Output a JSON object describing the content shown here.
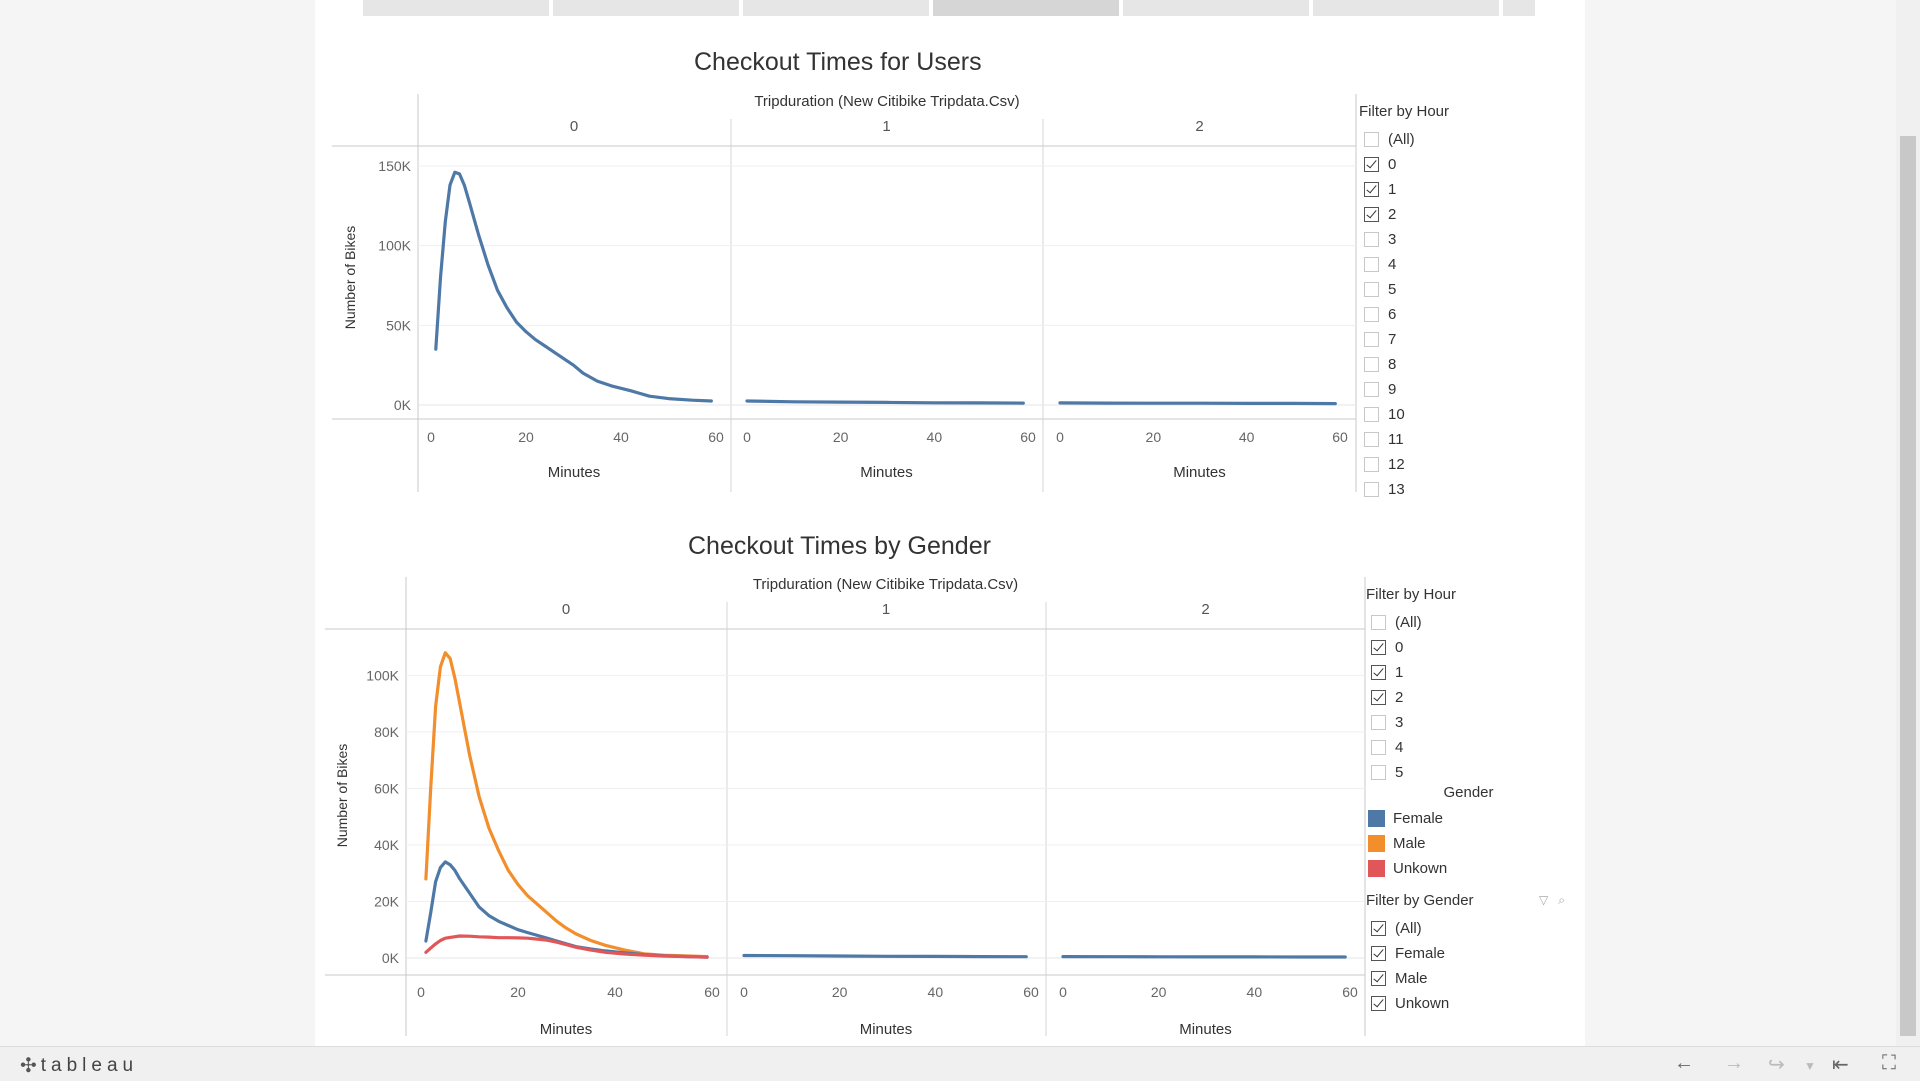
{
  "colors": {
    "female": "#4e79a7",
    "male": "#f28e2b",
    "unknown": "#e15759"
  },
  "chart_data": [
    {
      "type": "line",
      "title": "Checkout Times for Users",
      "column_header": "Tripduration (New Citibike Tripdata.Csv)",
      "xlabel": "Minutes",
      "ylabel": "Number of Bikes",
      "ylim": [
        0,
        160000
      ],
      "xlim": [
        0,
        60
      ],
      "y_ticks": [
        0,
        50000,
        100000,
        150000
      ],
      "y_tick_labels": [
        "0K",
        "50K",
        "100K",
        "150K"
      ],
      "x_ticks": [
        0,
        20,
        40,
        60
      ],
      "grid": true,
      "panels": [
        {
          "label": "0",
          "series": [
            {
              "color": "#4e79a7",
              "x": [
                1,
                2,
                3,
                4,
                5,
                6,
                7,
                8,
                10,
                12,
                14,
                16,
                18,
                20,
                22,
                24,
                26,
                28,
                30,
                32,
                35,
                38,
                42,
                46,
                50,
                55,
                59
              ],
              "y": [
                35000,
                80000,
                115000,
                138000,
                146000,
                145000,
                138000,
                128000,
                107000,
                88000,
                72000,
                61000,
                52000,
                46000,
                41000,
                37000,
                33000,
                29000,
                25000,
                20000,
                15000,
                12000,
                9000,
                5500,
                4000,
                3000,
                2500
              ]
            }
          ]
        },
        {
          "label": "1",
          "series": [
            {
              "color": "#4e79a7",
              "x": [
                0,
                10,
                20,
                30,
                40,
                50,
                59
              ],
              "y": [
                2500,
                2000,
                1800,
                1600,
                1400,
                1300,
                1200
              ]
            }
          ]
        },
        {
          "label": "2",
          "series": [
            {
              "color": "#4e79a7",
              "x": [
                0,
                10,
                20,
                30,
                40,
                50,
                59
              ],
              "y": [
                1300,
                1200,
                1100,
                1100,
                1000,
                1000,
                900
              ]
            }
          ]
        }
      ]
    },
    {
      "type": "line",
      "title": "Checkout Times by Gender",
      "column_header": "Tripduration (New Citibike Tripdata.Csv)",
      "xlabel": "Minutes",
      "ylabel": "Number of Bikes",
      "ylim": [
        0,
        115000
      ],
      "xlim": [
        0,
        60
      ],
      "y_ticks": [
        0,
        20000,
        40000,
        60000,
        80000,
        100000
      ],
      "y_tick_labels": [
        "0K",
        "20K",
        "40K",
        "60K",
        "80K",
        "100K"
      ],
      "x_ticks": [
        0,
        20,
        40,
        60
      ],
      "grid": true,
      "panels": [
        {
          "label": "0",
          "series": [
            {
              "name": "Male",
              "color": "#f28e2b",
              "x": [
                1,
                2,
                3,
                4,
                5,
                6,
                7,
                8,
                10,
                12,
                14,
                16,
                18,
                20,
                22,
                24,
                26,
                28,
                30,
                32,
                35,
                38,
                42,
                46,
                50,
                55,
                59
              ],
              "y": [
                28000,
                60000,
                89000,
                103000,
                108000,
                106000,
                99000,
                90000,
                72000,
                57000,
                46000,
                38000,
                31000,
                26000,
                22000,
                19000,
                16000,
                13000,
                10500,
                8500,
                6200,
                4500,
                2800,
                1500,
                1000,
                700,
                500
              ]
            },
            {
              "name": "Female",
              "color": "#4e79a7",
              "x": [
                1,
                2,
                3,
                4,
                5,
                6,
                7,
                8,
                10,
                12,
                14,
                16,
                18,
                20,
                22,
                24,
                26,
                28,
                30,
                32,
                35,
                38,
                42,
                46,
                50,
                55,
                59
              ],
              "y": [
                6000,
                16000,
                27000,
                32000,
                34000,
                33000,
                31000,
                28000,
                23000,
                18000,
                15000,
                13000,
                11500,
                10000,
                9000,
                8000,
                7000,
                6000,
                5000,
                4000,
                3200,
                2500,
                1800,
                1200,
                800,
                500,
                300
              ]
            },
            {
              "name": "Unkown",
              "color": "#e15759",
              "x": [
                1,
                2,
                3,
                4,
                5,
                6,
                8,
                10,
                12,
                14,
                16,
                18,
                20,
                22,
                24,
                26,
                28,
                30,
                32,
                35,
                38,
                42,
                46,
                50,
                55,
                59
              ],
              "y": [
                2000,
                3500,
                5000,
                6200,
                7000,
                7300,
                7800,
                7700,
                7500,
                7400,
                7200,
                7200,
                7100,
                7000,
                6700,
                6300,
                5600,
                4700,
                3800,
                2800,
                2000,
                1400,
                1000,
                700,
                500,
                300
              ]
            }
          ]
        },
        {
          "label": "1",
          "series": [
            {
              "name": "Female",
              "color": "#4e79a7",
              "x": [
                0,
                10,
                20,
                30,
                40,
                50,
                59
              ],
              "y": [
                900,
                800,
                700,
                600,
                550,
                500,
                450
              ]
            }
          ]
        },
        {
          "label": "2",
          "series": [
            {
              "name": "Female",
              "color": "#4e79a7",
              "x": [
                0,
                10,
                20,
                30,
                40,
                50,
                59
              ],
              "y": [
                500,
                450,
                420,
                400,
                380,
                360,
                350
              ]
            }
          ]
        }
      ]
    }
  ],
  "filter_hour_top": {
    "title": "Filter by Hour",
    "options": [
      {
        "label": "(All)",
        "checked": false
      },
      {
        "label": "0",
        "checked": true
      },
      {
        "label": "1",
        "checked": true
      },
      {
        "label": "2",
        "checked": true
      },
      {
        "label": "3",
        "checked": false
      },
      {
        "label": "4",
        "checked": false
      },
      {
        "label": "5",
        "checked": false
      },
      {
        "label": "6",
        "checked": false
      },
      {
        "label": "7",
        "checked": false
      },
      {
        "label": "8",
        "checked": false
      },
      {
        "label": "9",
        "checked": false
      },
      {
        "label": "10",
        "checked": false
      },
      {
        "label": "11",
        "checked": false
      },
      {
        "label": "12",
        "checked": false
      },
      {
        "label": "13",
        "checked": false
      }
    ]
  },
  "filter_hour_bottom": {
    "title": "Filter by Hour",
    "options": [
      {
        "label": "(All)",
        "checked": false
      },
      {
        "label": "0",
        "checked": true
      },
      {
        "label": "1",
        "checked": true
      },
      {
        "label": "2",
        "checked": true
      },
      {
        "label": "3",
        "checked": false
      },
      {
        "label": "4",
        "checked": false
      },
      {
        "label": "5",
        "checked": false
      }
    ]
  },
  "gender_legend": {
    "title": "Gender",
    "items": [
      {
        "label": "Female",
        "color": "#4e79a7"
      },
      {
        "label": "Male",
        "color": "#f28e2b"
      },
      {
        "label": "Unkown",
        "color": "#e15759"
      }
    ]
  },
  "filter_gender": {
    "title": "Filter by Gender",
    "options": [
      {
        "label": "(All)",
        "checked": true
      },
      {
        "label": "Female",
        "checked": true
      },
      {
        "label": "Male",
        "checked": true
      },
      {
        "label": "Unkown",
        "checked": true
      }
    ]
  },
  "footer": {
    "logo_text": "tableau"
  }
}
